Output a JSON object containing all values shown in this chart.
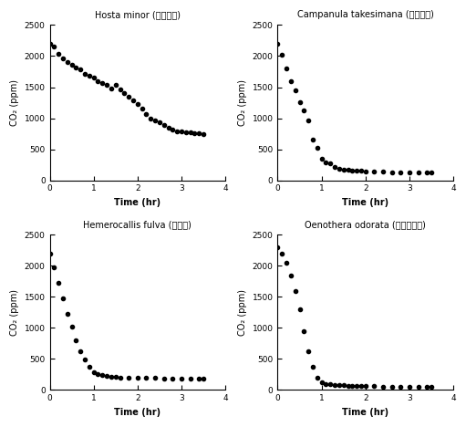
{
  "title_tl": "Hosta minor (섬비비추)",
  "title_tr": "Campanula takesimana (섬초롱꽃)",
  "title_bl": "Hemerocallis fulva (원추리)",
  "title_br": "Oenothera odorata (황금달맞이)",
  "ylabel": "CO₂ (ppm)",
  "xlabel": "Time (hr)",
  "xlim": [
    0,
    4.0
  ],
  "ylim": [
    0,
    2500
  ],
  "xticks": [
    0.0,
    1.0,
    2.0,
    3.0,
    4.0
  ],
  "yticks": [
    0,
    500,
    1000,
    1500,
    2000,
    2500
  ],
  "tl_x": [
    0.0,
    0.1,
    0.2,
    0.3,
    0.4,
    0.5,
    0.6,
    0.7,
    0.8,
    0.9,
    1.0,
    1.1,
    1.2,
    1.3,
    1.4,
    1.5,
    1.6,
    1.7,
    1.8,
    1.9,
    2.0,
    2.1,
    2.2,
    2.3,
    2.4,
    2.5,
    2.6,
    2.7,
    2.8,
    2.9,
    3.0,
    3.1,
    3.2,
    3.3,
    3.4,
    3.5
  ],
  "tl_y": [
    2200,
    2150,
    2030,
    1960,
    1900,
    1860,
    1820,
    1780,
    1720,
    1680,
    1650,
    1600,
    1570,
    1530,
    1480,
    1540,
    1460,
    1410,
    1350,
    1290,
    1230,
    1150,
    1060,
    1000,
    960,
    930,
    890,
    850,
    810,
    790,
    790,
    780,
    770,
    760,
    760,
    750
  ],
  "tr_x": [
    0.0,
    0.1,
    0.2,
    0.3,
    0.4,
    0.5,
    0.6,
    0.7,
    0.8,
    0.9,
    1.0,
    1.1,
    1.2,
    1.3,
    1.4,
    1.5,
    1.6,
    1.7,
    1.8,
    1.9,
    2.0,
    2.2,
    2.4,
    2.6,
    2.8,
    3.0,
    3.2,
    3.4,
    3.5
  ],
  "tr_y": [
    2200,
    2020,
    1800,
    1600,
    1450,
    1260,
    1130,
    970,
    660,
    530,
    350,
    290,
    270,
    210,
    190,
    175,
    165,
    160,
    155,
    150,
    145,
    140,
    135,
    130,
    130,
    125,
    120,
    120,
    120
  ],
  "bl_x": [
    0.0,
    0.1,
    0.2,
    0.3,
    0.4,
    0.5,
    0.6,
    0.7,
    0.8,
    0.9,
    1.0,
    1.1,
    1.2,
    1.3,
    1.4,
    1.5,
    1.6,
    1.8,
    2.0,
    2.2,
    2.4,
    2.6,
    2.8,
    3.0,
    3.2,
    3.4,
    3.5
  ],
  "bl_y": [
    2200,
    1980,
    1720,
    1480,
    1220,
    1020,
    800,
    630,
    490,
    380,
    280,
    250,
    235,
    225,
    215,
    210,
    205,
    200,
    195,
    195,
    195,
    190,
    190,
    190,
    190,
    190,
    190
  ],
  "br_x": [
    0.0,
    0.1,
    0.2,
    0.3,
    0.4,
    0.5,
    0.6,
    0.7,
    0.8,
    0.9,
    1.0,
    1.1,
    1.2,
    1.3,
    1.4,
    1.5,
    1.6,
    1.7,
    1.8,
    1.9,
    2.0,
    2.2,
    2.4,
    2.6,
    2.8,
    3.0,
    3.2,
    3.4,
    3.5
  ],
  "br_y": [
    2300,
    2200,
    2050,
    1850,
    1600,
    1300,
    950,
    620,
    370,
    200,
    120,
    100,
    90,
    85,
    80,
    75,
    72,
    70,
    68,
    65,
    62,
    60,
    58,
    57,
    55,
    55,
    54,
    54,
    53
  ],
  "marker": "o",
  "marker_size": 3,
  "marker_color": "black",
  "line_style": "none",
  "title_fontsize": 7,
  "label_fontsize": 7,
  "tick_fontsize": 6.5
}
